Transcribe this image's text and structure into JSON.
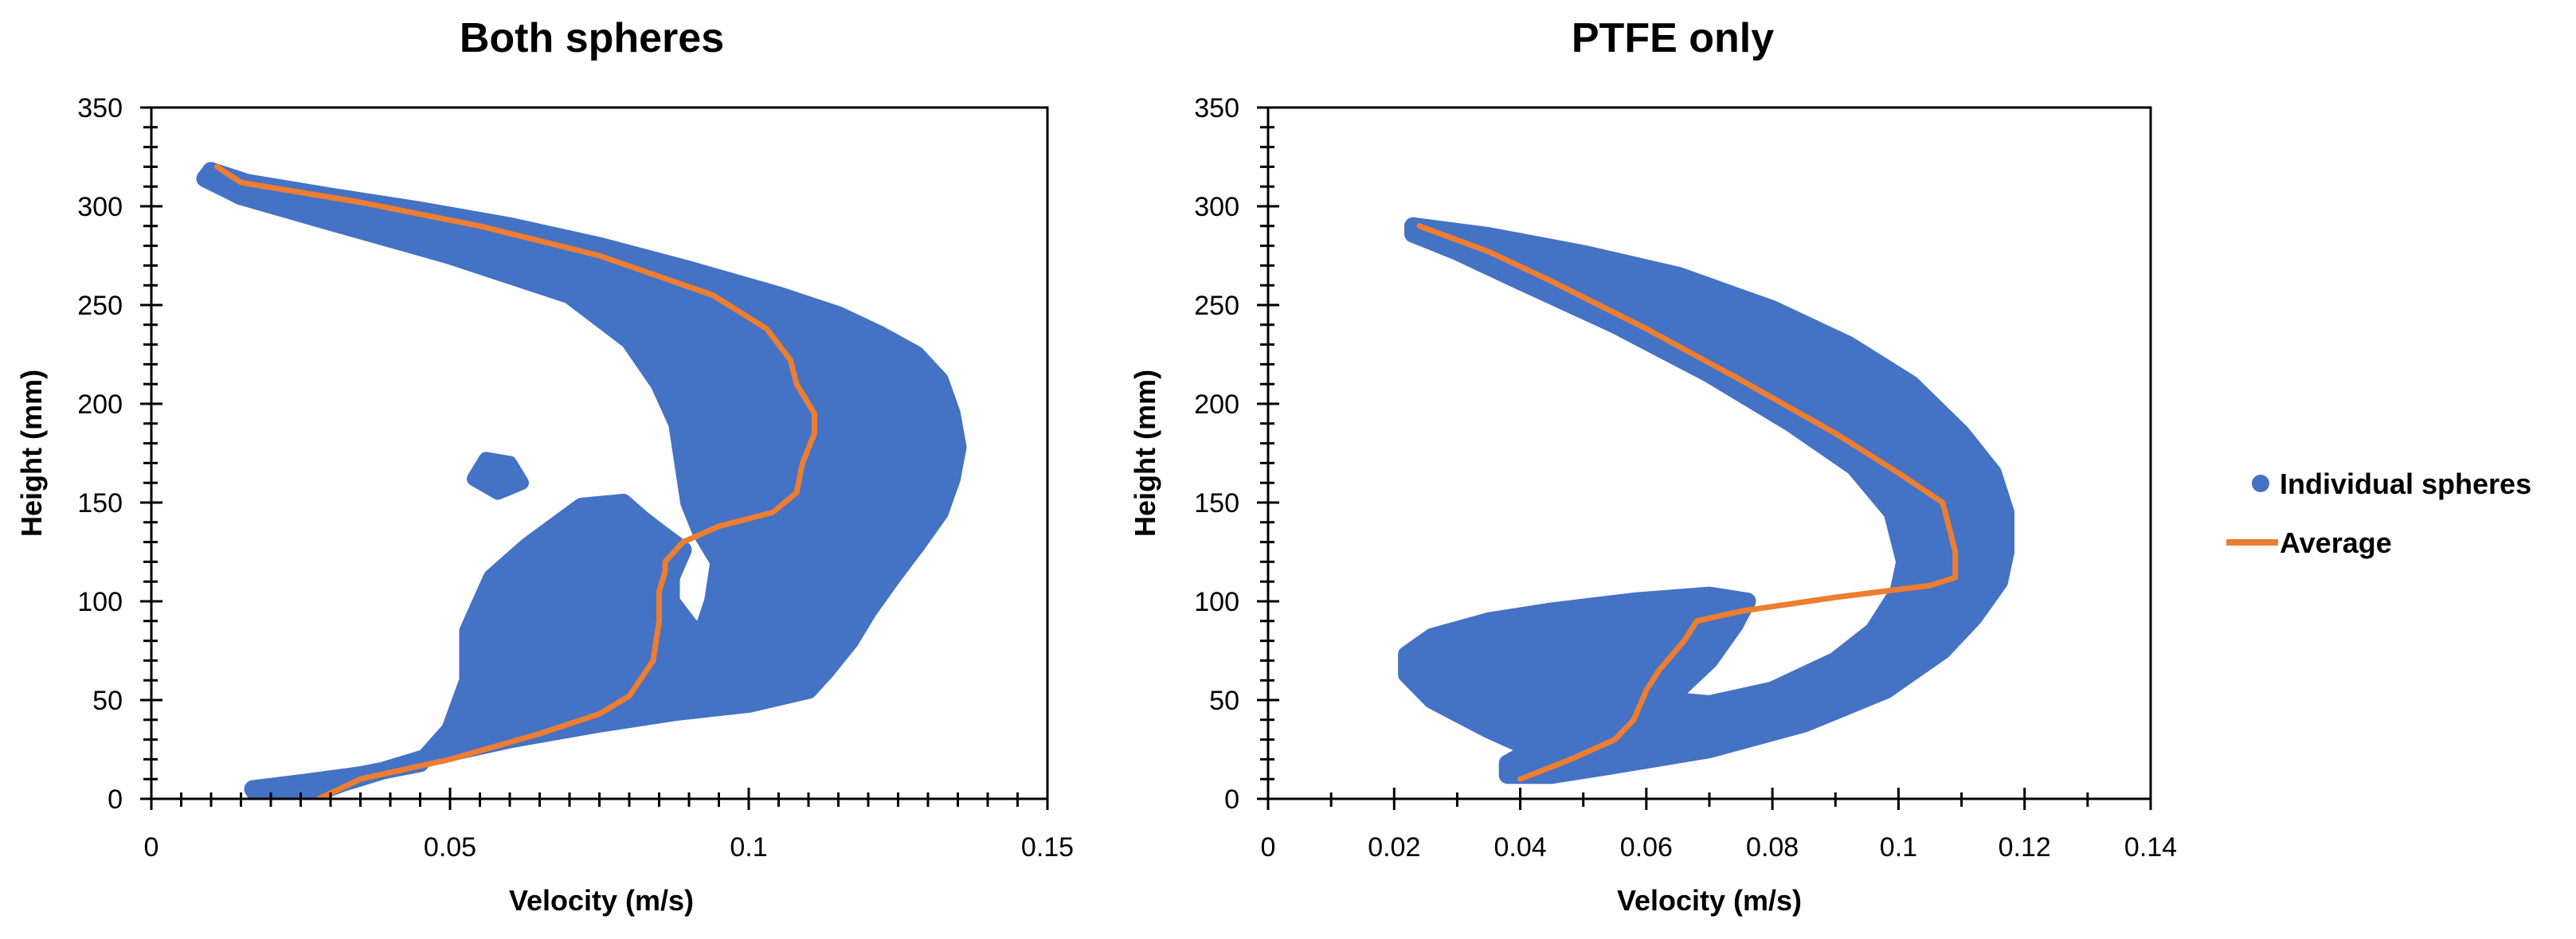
{
  "chart_data": [
    {
      "type": "scatter",
      "title": "Both spheres",
      "xlabel": "Velocity (m/s)",
      "ylabel": "Height (mm)",
      "xlim": [
        0,
        0.15
      ],
      "ylim": [
        0,
        350
      ],
      "x_ticks": [
        0,
        0.05,
        0.1,
        0.15
      ],
      "x_tick_labels": [
        "0",
        "0.05",
        "0.1",
        "0.15"
      ],
      "y_ticks": [
        0,
        50,
        100,
        150,
        200,
        250,
        300,
        350
      ],
      "y_tick_labels": [
        "0",
        "50",
        "100",
        "150",
        "200",
        "250",
        "300",
        "350"
      ],
      "series": [
        {
          "name": "Individual spheres",
          "kind": "scatter-region",
          "color": "#4472C4",
          "outline": [
            [
              0.01,
              318
            ],
            [
              0.016,
              312
            ],
            [
              0.03,
              305
            ],
            [
              0.045,
              298
            ],
            [
              0.06,
              290
            ],
            [
              0.075,
              280
            ],
            [
              0.09,
              268
            ],
            [
              0.105,
              255
            ],
            [
              0.115,
              245
            ],
            [
              0.122,
              235
            ],
            [
              0.128,
              225
            ],
            [
              0.132,
              212
            ],
            [
              0.134,
              195
            ],
            [
              0.135,
              178
            ],
            [
              0.134,
              162
            ],
            [
              0.132,
              145
            ],
            [
              0.128,
              128
            ],
            [
              0.124,
              112
            ],
            [
              0.12,
              95
            ],
            [
              0.117,
              80
            ],
            [
              0.113,
              65
            ],
            [
              0.11,
              55
            ],
            [
              0.1,
              48
            ],
            [
              0.088,
              44
            ],
            [
              0.075,
              38
            ],
            [
              0.06,
              30
            ],
            [
              0.045,
              20
            ],
            [
              0.032,
              8
            ],
            [
              0.025,
              0
            ],
            [
              0.018,
              0
            ],
            [
              0.017,
              5
            ],
            [
              0.025,
              8
            ],
            [
              0.035,
              12
            ],
            [
              0.045,
              18
            ],
            [
              0.05,
              35
            ],
            [
              0.053,
              60
            ],
            [
              0.053,
              85
            ],
            [
              0.057,
              112
            ],
            [
              0.063,
              128
            ],
            [
              0.072,
              148
            ],
            [
              0.079,
              150
            ],
            [
              0.082,
              142
            ],
            [
              0.085,
              135
            ],
            [
              0.089,
              126
            ],
            [
              0.087,
              112
            ],
            [
              0.087,
              100
            ],
            [
              0.09,
              88
            ],
            [
              0.092,
              82
            ],
            [
              0.094,
              100
            ],
            [
              0.095,
              120
            ],
            [
              0.092,
              135
            ],
            [
              0.09,
              150
            ],
            [
              0.089,
              170
            ],
            [
              0.088,
              190
            ],
            [
              0.085,
              210
            ],
            [
              0.08,
              232
            ],
            [
              0.07,
              255
            ],
            [
              0.05,
              275
            ],
            [
              0.03,
              292
            ],
            [
              0.015,
              305
            ],
            [
              0.009,
              314
            ]
          ],
          "islands": [
            [
              [
                0.054,
                162
              ],
              [
                0.056,
                172
              ],
              [
                0.06,
                170
              ],
              [
                0.062,
                160
              ],
              [
                0.058,
                155
              ]
            ]
          ]
        },
        {
          "name": "Average",
          "kind": "line",
          "color": "#ED7D31",
          "x": [
            0.028,
            0.035,
            0.05,
            0.065,
            0.075,
            0.08,
            0.084,
            0.085,
            0.085,
            0.086,
            0.086,
            0.089,
            0.095,
            0.104,
            0.108,
            0.109,
            0.111,
            0.111,
            0.108,
            0.107,
            0.103,
            0.094,
            0.075,
            0.055,
            0.035,
            0.015,
            0.011
          ],
          "y": [
            0,
            10,
            20,
            33,
            43,
            52,
            70,
            90,
            105,
            115,
            120,
            130,
            138,
            145,
            155,
            170,
            185,
            195,
            210,
            222,
            238,
            255,
            275,
            290,
            302,
            312,
            320
          ]
        }
      ]
    },
    {
      "type": "scatter",
      "title": "PTFE only",
      "xlabel": "Velocity (m/s)",
      "ylabel": "Height (mm)",
      "xlim": [
        0,
        0.14
      ],
      "ylim": [
        0,
        350
      ],
      "x_ticks": [
        0,
        0.02,
        0.04,
        0.06,
        0.08,
        0.1,
        0.12,
        0.14
      ],
      "x_tick_labels": [
        "0",
        "0.02",
        "0.04",
        "0.06",
        "0.08",
        "0.1",
        "0.12",
        "0.14"
      ],
      "y_ticks": [
        0,
        50,
        100,
        150,
        200,
        250,
        300,
        350
      ],
      "y_tick_labels": [
        "0",
        "50",
        "100",
        "150",
        "200",
        "250",
        "300",
        "350"
      ],
      "series": [
        {
          "name": "Individual spheres",
          "kind": "scatter-region",
          "color": "#4472C4",
          "outline": [
            [
              0.023,
              290
            ],
            [
              0.035,
              285
            ],
            [
              0.05,
              276
            ],
            [
              0.065,
              265
            ],
            [
              0.08,
              248
            ],
            [
              0.092,
              230
            ],
            [
              0.102,
              210
            ],
            [
              0.11,
              185
            ],
            [
              0.115,
              165
            ],
            [
              0.117,
              145
            ],
            [
              0.117,
              125
            ],
            [
              0.116,
              110
            ],
            [
              0.112,
              92
            ],
            [
              0.107,
              75
            ],
            [
              0.098,
              55
            ],
            [
              0.085,
              38
            ],
            [
              0.07,
              25
            ],
            [
              0.055,
              17
            ],
            [
              0.045,
              12
            ],
            [
              0.038,
              12
            ],
            [
              0.038,
              18
            ],
            [
              0.042,
              25
            ],
            [
              0.035,
              35
            ],
            [
              0.026,
              50
            ],
            [
              0.022,
              63
            ],
            [
              0.022,
              73
            ],
            [
              0.026,
              82
            ],
            [
              0.035,
              90
            ],
            [
              0.045,
              95
            ],
            [
              0.058,
              100
            ],
            [
              0.07,
              103
            ],
            [
              0.076,
              100
            ],
            [
              0.074,
              88
            ],
            [
              0.07,
              70
            ],
            [
              0.065,
              55
            ],
            [
              0.063,
              50
            ],
            [
              0.07,
              48
            ],
            [
              0.08,
              55
            ],
            [
              0.09,
              70
            ],
            [
              0.096,
              85
            ],
            [
              0.1,
              105
            ],
            [
              0.101,
              120
            ],
            [
              0.099,
              145
            ],
            [
              0.093,
              168
            ],
            [
              0.083,
              190
            ],
            [
              0.07,
              215
            ],
            [
              0.055,
              240
            ],
            [
              0.04,
              262
            ],
            [
              0.03,
              277
            ],
            [
              0.023,
              286
            ]
          ],
          "islands": []
        },
        {
          "name": "Average",
          "kind": "line",
          "color": "#ED7D31",
          "x": [
            0.04,
            0.048,
            0.055,
            0.058,
            0.06,
            0.062,
            0.066,
            0.068,
            0.075,
            0.09,
            0.105,
            0.109,
            0.109,
            0.108,
            0.107,
            0.1,
            0.09,
            0.075,
            0.06,
            0.045,
            0.035,
            0.024
          ],
          "y": [
            10,
            20,
            30,
            40,
            55,
            65,
            80,
            90,
            95,
            102,
            108,
            112,
            125,
            138,
            150,
            165,
            185,
            212,
            238,
            262,
            277,
            290
          ]
        }
      ]
    }
  ],
  "legend": {
    "items": [
      {
        "label": "Individual spheres",
        "kind": "marker",
        "color": "#4472C4"
      },
      {
        "label": "Average",
        "kind": "line",
        "color": "#ED7D31"
      }
    ]
  }
}
